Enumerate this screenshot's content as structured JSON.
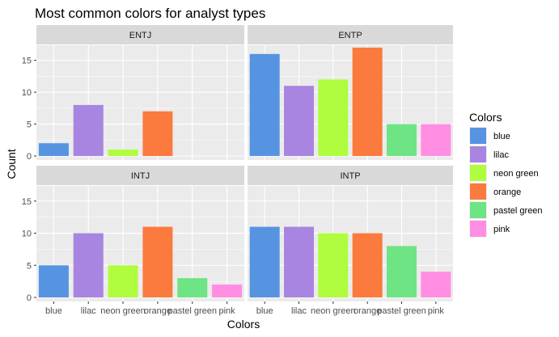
{
  "chart_data": {
    "type": "bar",
    "title": "Most common colors for analyst types",
    "xlabel": "Colors",
    "ylabel": "Count",
    "ylim": [
      0,
      18
    ],
    "yticks": [
      "0",
      "5",
      "10",
      "15"
    ],
    "categories": [
      "blue",
      "lilac",
      "neon green",
      "orange",
      "pastel green",
      "pink"
    ],
    "colors": {
      "blue": "#5694e2",
      "lilac": "#a885e0",
      "neon green": "#b0fc3f",
      "orange": "#fb7a3d",
      "pastel green": "#6ee484",
      "pink": "#ff8ee2"
    },
    "facets": [
      {
        "name": "ENTJ",
        "values": [
          2,
          8,
          1,
          7,
          0,
          0
        ]
      },
      {
        "name": "ENTP",
        "values": [
          16,
          11,
          12,
          17,
          5,
          5
        ]
      },
      {
        "name": "INTJ",
        "values": [
          5,
          10,
          5,
          11,
          3,
          2
        ]
      },
      {
        "name": "INTP",
        "values": [
          11,
          11,
          10,
          10,
          8,
          4
        ]
      }
    ],
    "legend": {
      "title": "Colors",
      "position": "right",
      "items": [
        "blue",
        "lilac",
        "neon green",
        "orange",
        "pastel green",
        "pink"
      ]
    },
    "grid": true,
    "panel_background": "#ebebeb",
    "strip_background": "#d9d9d9"
  }
}
